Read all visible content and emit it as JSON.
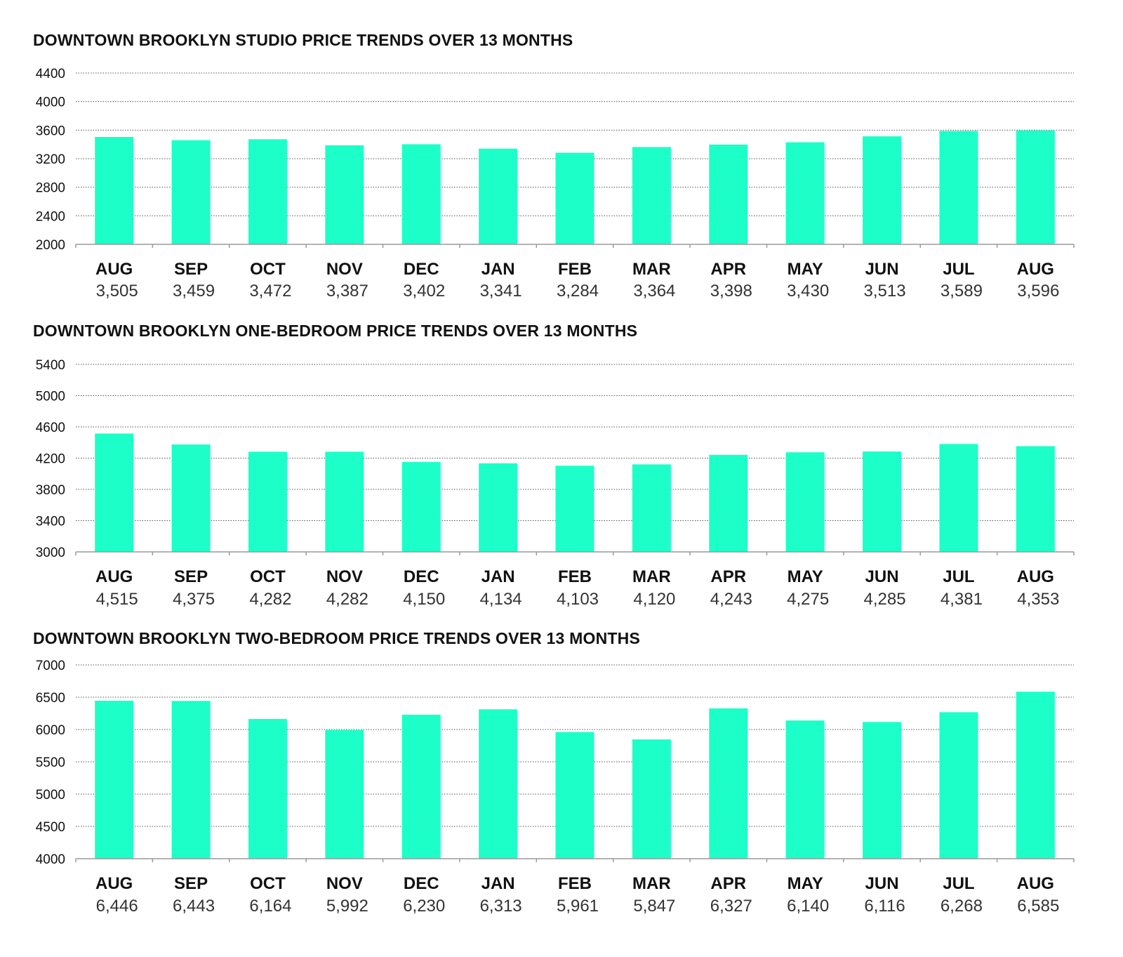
{
  "chart_data": [
    {
      "type": "bar",
      "title": "DOWNTOWN BROOKLYN STUDIO PRICE TRENDS OVER 13 MONTHS",
      "categories": [
        "AUG",
        "SEP",
        "OCT",
        "NOV",
        "DEC",
        "JAN",
        "FEB",
        "MAR",
        "APR",
        "MAY",
        "JUN",
        "JUL",
        "AUG"
      ],
      "values": [
        3505,
        3459,
        3472,
        3387,
        3402,
        3341,
        3284,
        3364,
        3398,
        3430,
        3513,
        3589,
        3596
      ],
      "value_labels": [
        "3,505",
        "3,459",
        "3,472",
        "3,387",
        "3,402",
        "3,341",
        "3,284",
        "3,364",
        "3,398",
        "3,430",
        "3,513",
        "3,589",
        "3,596"
      ],
      "ylim": [
        2000,
        4400
      ],
      "yticks": [
        "2000",
        "2400",
        "2800",
        "3200",
        "3600",
        "4000",
        "4400"
      ],
      "grid": true,
      "bar_color": "#1dffc8"
    },
    {
      "type": "bar",
      "title": "DOWNTOWN BROOKLYN ONE-BEDROOM PRICE TRENDS OVER 13 MONTHS",
      "categories": [
        "AUG",
        "SEP",
        "OCT",
        "NOV",
        "DEC",
        "JAN",
        "FEB",
        "MAR",
        "APR",
        "MAY",
        "JUN",
        "JUL",
        "AUG"
      ],
      "values": [
        4515,
        4375,
        4282,
        4282,
        4150,
        4134,
        4103,
        4120,
        4243,
        4275,
        4285,
        4381,
        4353
      ],
      "value_labels": [
        "4,515",
        "4,375",
        "4,282",
        "4,282",
        "4,150",
        "4,134",
        "4,103",
        "4,120",
        "4,243",
        "4,275",
        "4,285",
        "4,381",
        "4,353"
      ],
      "ylim": [
        3000,
        5400
      ],
      "yticks": [
        "3000",
        "3400",
        "3800",
        "4200",
        "4600",
        "5000",
        "5400"
      ],
      "grid": true,
      "bar_color": "#1dffc8"
    },
    {
      "type": "bar",
      "title": "DOWNTOWN BROOKLYN TWO-BEDROOM PRICE TRENDS OVER 13 MONTHS",
      "categories": [
        "AUG",
        "SEP",
        "OCT",
        "NOV",
        "DEC",
        "JAN",
        "FEB",
        "MAR",
        "APR",
        "MAY",
        "JUN",
        "JUL",
        "AUG"
      ],
      "values": [
        6446,
        6443,
        6164,
        5992,
        6230,
        6313,
        5961,
        5847,
        6327,
        6140,
        6116,
        6268,
        6585
      ],
      "value_labels": [
        "6,446",
        "6,443",
        "6,164",
        "5,992",
        "6,230",
        "6,313",
        "5,961",
        "5,847",
        "6,327",
        "6,140",
        "6,116",
        "6,268",
        "6,585"
      ],
      "ylim": [
        4000,
        7000
      ],
      "yticks": [
        "4000",
        "4500",
        "5000",
        "5500",
        "6000",
        "6500",
        "7000"
      ],
      "grid": true,
      "bar_color": "#1dffc8"
    }
  ]
}
